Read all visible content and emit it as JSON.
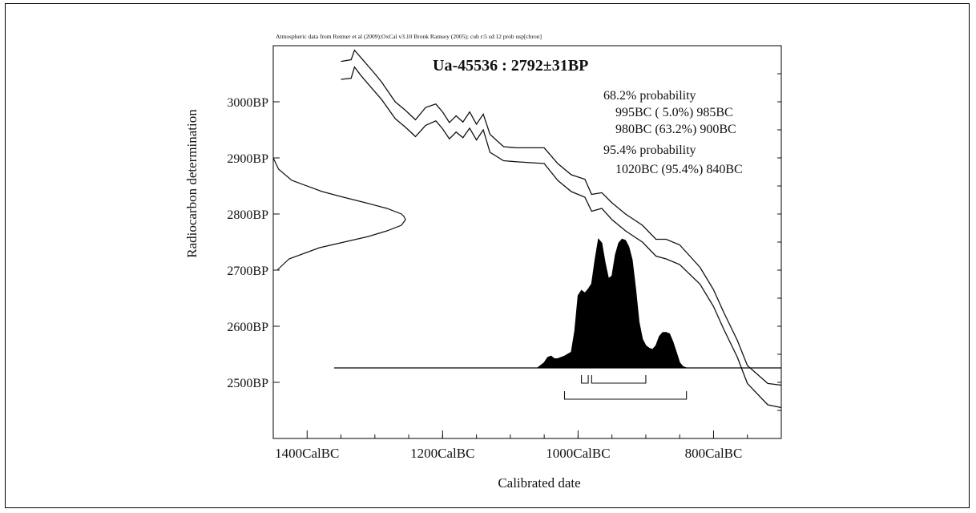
{
  "chart_data": {
    "type": "area",
    "header_note": "Atmospheric data from Reimer et al (2009);OxCal v3.10 Bronk Ramsey (2005); cub r:5 sd:12 prob usp[chron]",
    "title": "Ua-45536 : 2792±31BP",
    "xlabel": "Calibrated date",
    "ylabel": "Radiocarbon determination",
    "x_ticks": [
      "1400CalBC",
      "1200CalBC",
      "1000CalBC",
      "800CalBC"
    ],
    "y_ticks": [
      "3000BP",
      "2900BP",
      "2800BP",
      "2700BP",
      "2600BP",
      "2500BP"
    ],
    "xlim": [
      -1450,
      -700
    ],
    "ylim": [
      2400,
      3100
    ],
    "annotations": [
      "68.2% probability",
      "995BC ( 5.0%) 985BC",
      "980BC (63.2%) 900BC",
      "95.4% probability",
      "1020BC (95.4%) 840BC"
    ],
    "radiocarbon_date": {
      "mean": 2792,
      "sd": 31
    },
    "ranges_68": [
      [
        -995,
        -985
      ],
      [
        -980,
        -900
      ]
    ],
    "ranges_95": [
      [
        -1020,
        -840
      ]
    ],
    "calibration_curve": {
      "x": [
        -1350,
        -1335,
        -1330,
        -1320,
        -1300,
        -1290,
        -1270,
        -1255,
        -1240,
        -1225,
        -1210,
        -1200,
        -1190,
        -1180,
        -1170,
        -1160,
        -1150,
        -1140,
        -1130,
        -1110,
        -1090,
        -1050,
        -1030,
        -1010,
        -990,
        -980,
        -965,
        -950,
        -930,
        -905,
        -885,
        -870,
        -850,
        -820,
        -800,
        -785,
        -765,
        -750,
        -720,
        -700
      ],
      "upper": [
        3072,
        3075,
        3092,
        3078,
        3050,
        3035,
        3000,
        2985,
        2968,
        2990,
        2996,
        2982,
        2963,
        2975,
        2964,
        2982,
        2960,
        2978,
        2942,
        2920,
        2918,
        2918,
        2890,
        2870,
        2862,
        2835,
        2838,
        2820,
        2800,
        2780,
        2755,
        2755,
        2745,
        2705,
        2665,
        2625,
        2575,
        2530,
        2498,
        2495
      ],
      "lower": [
        3040,
        3042,
        3062,
        3046,
        3018,
        3004,
        2970,
        2955,
        2938,
        2958,
        2966,
        2952,
        2934,
        2946,
        2936,
        2953,
        2932,
        2950,
        2910,
        2895,
        2893,
        2890,
        2860,
        2840,
        2830,
        2805,
        2810,
        2790,
        2770,
        2750,
        2725,
        2720,
        2710,
        2675,
        2635,
        2595,
        2545,
        2498,
        2460,
        2455
      ]
    },
    "calibrated_distribution": {
      "x": [
        -1360,
        -1060,
        -1050,
        -1045,
        -1040,
        -1035,
        -1030,
        -1020,
        -1010,
        -1005,
        -1000,
        -995,
        -990,
        -985,
        -980,
        -975,
        -970,
        -965,
        -960,
        -955,
        -950,
        -945,
        -940,
        -935,
        -930,
        -925,
        -920,
        -915,
        -910,
        -905,
        -900,
        -895,
        -890,
        -885,
        -880,
        -875,
        -870,
        -865,
        -860,
        -855,
        -850,
        -845,
        -840,
        -830,
        -700
      ],
      "y": [
        0,
        0,
        0.04,
        0.08,
        0.09,
        0.07,
        0.07,
        0.09,
        0.12,
        0.28,
        0.55,
        0.59,
        0.57,
        0.6,
        0.64,
        0.82,
        0.98,
        0.95,
        0.8,
        0.68,
        0.7,
        0.86,
        0.95,
        0.98,
        0.97,
        0.92,
        0.82,
        0.6,
        0.35,
        0.22,
        0.17,
        0.15,
        0.14,
        0.17,
        0.24,
        0.27,
        0.27,
        0.26,
        0.2,
        0.12,
        0.04,
        0.01,
        0,
        0,
        0
      ]
    },
    "measurement_distribution": {
      "y": [
        2700,
        2720,
        2740,
        2760,
        2770,
        2780,
        2790,
        2795,
        2800,
        2810,
        2820,
        2830,
        2840,
        2860,
        2880,
        2900
      ],
      "density": [
        0.03,
        0.12,
        0.35,
        0.72,
        0.86,
        0.97,
        1.0,
        0.99,
        0.97,
        0.86,
        0.7,
        0.53,
        0.37,
        0.14,
        0.04,
        0.0
      ]
    }
  }
}
